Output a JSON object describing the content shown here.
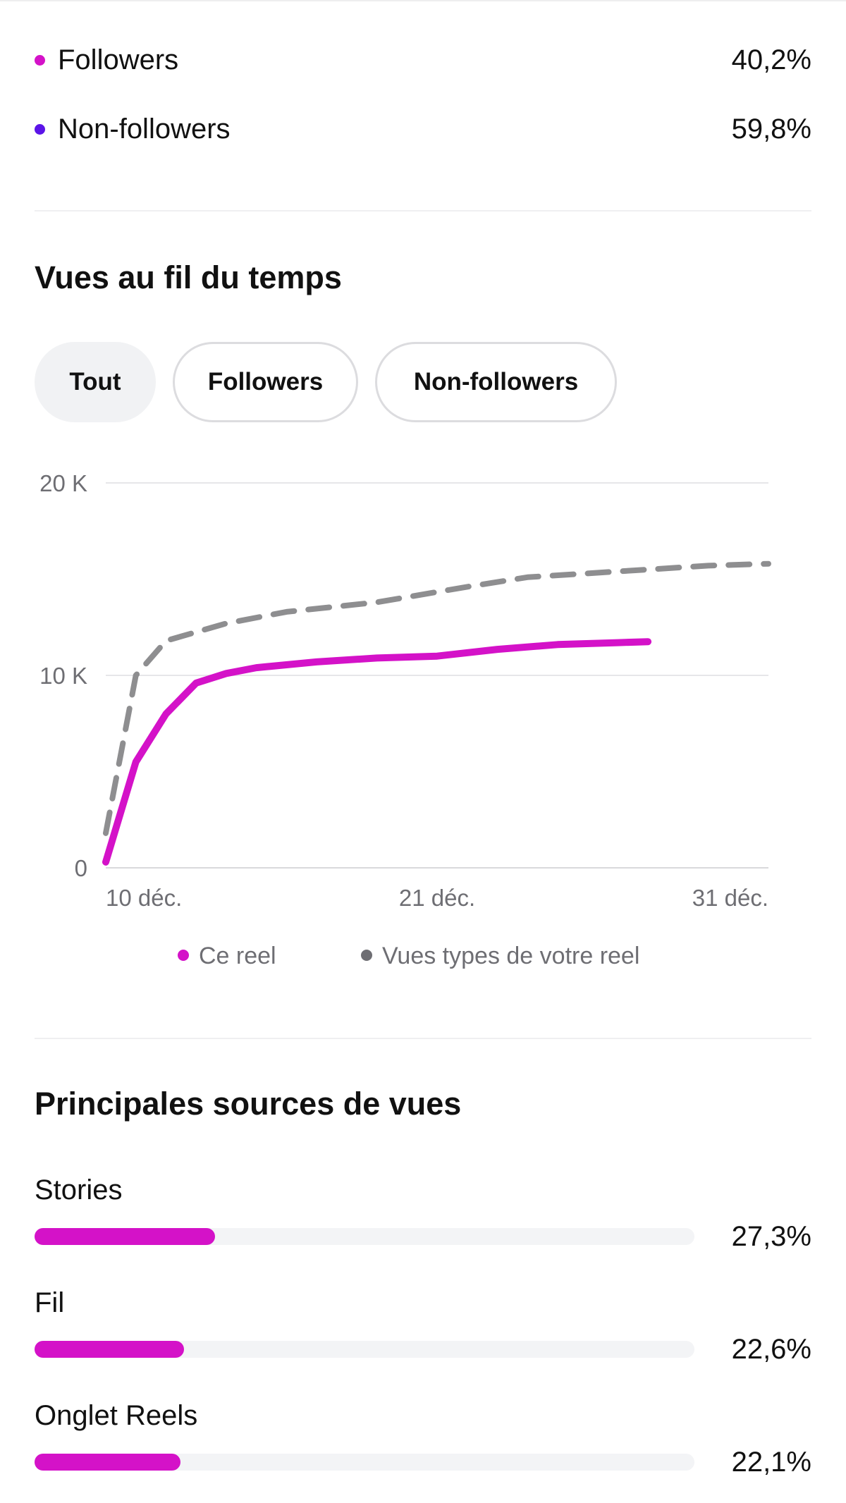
{
  "audience": {
    "items": [
      {
        "label": "Followers",
        "value": "40,2%",
        "color": "#d412c8"
      },
      {
        "label": "Non-followers",
        "value": "59,8%",
        "color": "#5b14e8"
      }
    ]
  },
  "views_over_time": {
    "title": "Vues au fil du temps",
    "tabs": [
      {
        "label": "Tout",
        "active": true
      },
      {
        "label": "Followers",
        "active": false
      },
      {
        "label": "Non-followers",
        "active": false
      }
    ]
  },
  "chart_data": {
    "type": "line",
    "x_ticks": [
      "10 déc.",
      "21 déc.",
      "31 déc."
    ],
    "x_range": [
      "2023-12-09",
      "2023-12-31"
    ],
    "y_ticks": [
      "0",
      "10 K",
      "20 K"
    ],
    "ylim": [
      0,
      20000
    ],
    "grid": true,
    "series": [
      {
        "name": "Ce reel",
        "color": "#d412c8",
        "style": "solid",
        "points": [
          [
            "2023-12-09",
            300
          ],
          [
            "2023-12-10",
            5500
          ],
          [
            "2023-12-11",
            8000
          ],
          [
            "2023-12-12",
            9600
          ],
          [
            "2023-12-13",
            10100
          ],
          [
            "2023-12-14",
            10400
          ],
          [
            "2023-12-16",
            10700
          ],
          [
            "2023-12-18",
            10900
          ],
          [
            "2023-12-20",
            11000
          ],
          [
            "2023-12-22",
            11350
          ],
          [
            "2023-12-24",
            11600
          ],
          [
            "2023-12-26",
            11700
          ],
          [
            "2023-12-27",
            11750
          ]
        ]
      },
      {
        "name": "Vues types de votre reel",
        "color": "#8e8e90",
        "style": "dashed",
        "points": [
          [
            "2023-12-09",
            1800
          ],
          [
            "2023-12-10",
            10000
          ],
          [
            "2023-12-11",
            11800
          ],
          [
            "2023-12-13",
            12700
          ],
          [
            "2023-12-15",
            13300
          ],
          [
            "2023-12-18",
            13800
          ],
          [
            "2023-12-21",
            14600
          ],
          [
            "2023-12-23",
            15100
          ],
          [
            "2023-12-26",
            15400
          ],
          [
            "2023-12-29",
            15700
          ],
          [
            "2023-12-31",
            15800
          ]
        ]
      }
    ]
  },
  "sources": {
    "title": "Principales sources de vues",
    "items": [
      {
        "label": "Stories",
        "value": "27,3%",
        "fraction": 0.273
      },
      {
        "label": "Fil",
        "value": "22,6%",
        "fraction": 0.226
      },
      {
        "label": "Onglet Reels",
        "value": "22,1%",
        "fraction": 0.221
      }
    ]
  }
}
